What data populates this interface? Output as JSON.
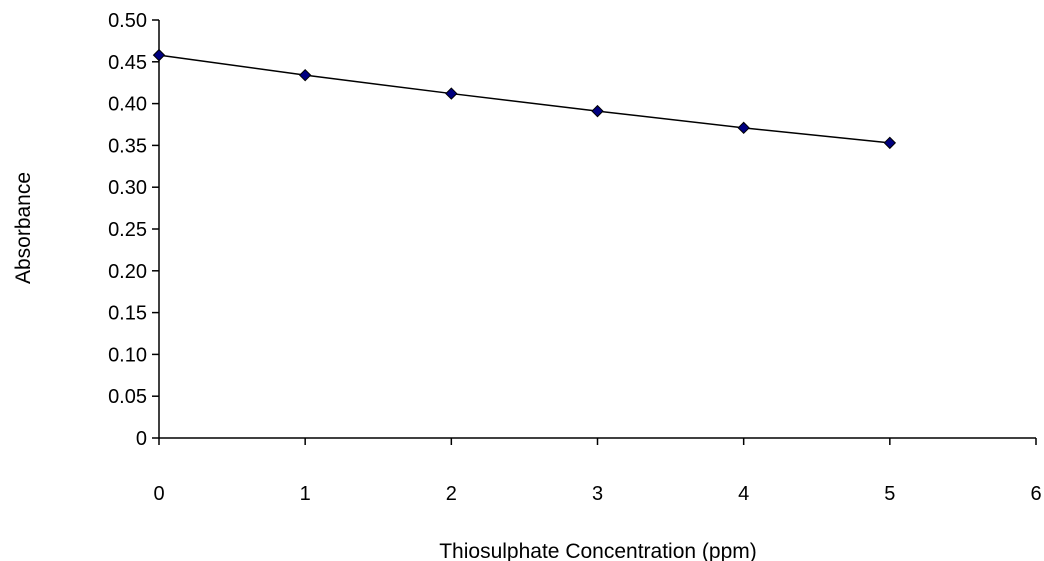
{
  "chart_data": {
    "type": "line",
    "title": "",
    "xlabel": "Thiosulphate Concentration (ppm)",
    "ylabel": "Absorbance",
    "xlim": [
      0,
      6
    ],
    "ylim": [
      0,
      0.5
    ],
    "x_ticks": [
      0,
      1,
      2,
      3,
      4,
      5,
      6
    ],
    "x_tick_labels": [
      "0",
      "1",
      "2",
      "3",
      "4",
      "5",
      "6"
    ],
    "y_ticks": [
      0,
      0.05,
      0.1,
      0.15,
      0.2,
      0.25,
      0.3,
      0.35,
      0.4,
      0.45,
      0.5
    ],
    "y_tick_labels": [
      "0",
      "0.05",
      "0.10",
      "0.15",
      "0.20",
      "0.25",
      "0.30",
      "0.35",
      "0.40",
      "0.45",
      "0.50"
    ],
    "grid": false,
    "legend": "none",
    "marker": "diamond",
    "series": [
      {
        "x": [
          0,
          1,
          2,
          3,
          4,
          5
        ],
        "values": [
          0.458,
          0.434,
          0.412,
          0.391,
          0.371,
          0.353
        ],
        "color": "#000080",
        "line_color": "#000000"
      }
    ]
  }
}
